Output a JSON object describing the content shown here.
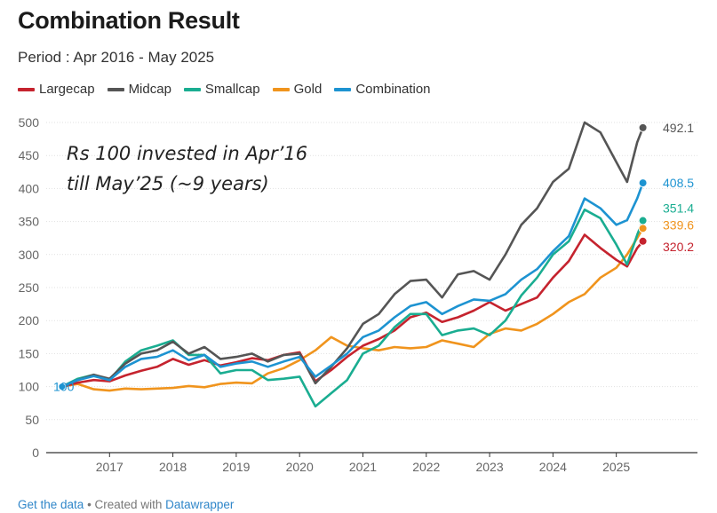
{
  "title": "Combination Result",
  "subtitle": "Period : Apr 2016 - May 2025",
  "annotation": [
    "Rs 100 invested in Apr’16",
    "till May’25 (~9 years)"
  ],
  "footer": {
    "get_data": "Get the data",
    "separator": " • Created with ",
    "tool": "Datawrapper"
  },
  "chart_data": {
    "type": "line",
    "xlabel": "",
    "ylabel": "",
    "ylim": [
      0,
      500
    ],
    "yticks": [
      0,
      50,
      100,
      150,
      200,
      250,
      300,
      350,
      400,
      450,
      500
    ],
    "xticks": [
      "2017",
      "2018",
      "2019",
      "2020",
      "2021",
      "2022",
      "2023",
      "2024",
      "2025"
    ],
    "x_start": "Apr 2016",
    "x_end": "May 2025",
    "grid": true,
    "legend_position": "top-left",
    "start_label": "100",
    "series": [
      {
        "name": "Largecap",
        "color": "#c5232e",
        "end_label": "320.2",
        "points": [
          [
            2016.25,
            100
          ],
          [
            2016.5,
            106
          ],
          [
            2016.75,
            110
          ],
          [
            2017.0,
            108
          ],
          [
            2017.25,
            117
          ],
          [
            2017.5,
            124
          ],
          [
            2017.75,
            130
          ],
          [
            2018.0,
            142
          ],
          [
            2018.25,
            133
          ],
          [
            2018.5,
            140
          ],
          [
            2018.75,
            132
          ],
          [
            2019.0,
            137
          ],
          [
            2019.25,
            143
          ],
          [
            2019.5,
            140
          ],
          [
            2019.75,
            148
          ],
          [
            2020.0,
            152
          ],
          [
            2020.25,
            108
          ],
          [
            2020.5,
            125
          ],
          [
            2020.75,
            145
          ],
          [
            2021.0,
            162
          ],
          [
            2021.25,
            172
          ],
          [
            2021.5,
            185
          ],
          [
            2021.75,
            205
          ],
          [
            2022.0,
            212
          ],
          [
            2022.25,
            198
          ],
          [
            2022.5,
            205
          ],
          [
            2022.75,
            215
          ],
          [
            2023.0,
            228
          ],
          [
            2023.25,
            215
          ],
          [
            2023.5,
            225
          ],
          [
            2023.75,
            235
          ],
          [
            2024.0,
            265
          ],
          [
            2024.25,
            290
          ],
          [
            2024.5,
            330
          ],
          [
            2024.75,
            310
          ],
          [
            2025.0,
            292
          ],
          [
            2025.17,
            282
          ],
          [
            2025.33,
            310
          ],
          [
            2025.42,
            320.2
          ]
        ]
      },
      {
        "name": "Midcap",
        "color": "#555555",
        "end_label": "492.1",
        "points": [
          [
            2016.25,
            100
          ],
          [
            2016.5,
            110
          ],
          [
            2016.75,
            118
          ],
          [
            2017.0,
            112
          ],
          [
            2017.25,
            135
          ],
          [
            2017.5,
            150
          ],
          [
            2017.75,
            155
          ],
          [
            2018.0,
            168
          ],
          [
            2018.25,
            150
          ],
          [
            2018.5,
            160
          ],
          [
            2018.75,
            142
          ],
          [
            2019.0,
            145
          ],
          [
            2019.25,
            150
          ],
          [
            2019.5,
            138
          ],
          [
            2019.75,
            148
          ],
          [
            2020.0,
            150
          ],
          [
            2020.25,
            105
          ],
          [
            2020.5,
            130
          ],
          [
            2020.75,
            158
          ],
          [
            2021.0,
            195
          ],
          [
            2021.25,
            210
          ],
          [
            2021.5,
            240
          ],
          [
            2021.75,
            260
          ],
          [
            2022.0,
            262
          ],
          [
            2022.25,
            235
          ],
          [
            2022.5,
            270
          ],
          [
            2022.75,
            275
          ],
          [
            2023.0,
            262
          ],
          [
            2023.25,
            300
          ],
          [
            2023.5,
            345
          ],
          [
            2023.75,
            370
          ],
          [
            2024.0,
            410
          ],
          [
            2024.25,
            430
          ],
          [
            2024.5,
            500
          ],
          [
            2024.75,
            485
          ],
          [
            2025.0,
            440
          ],
          [
            2025.17,
            410
          ],
          [
            2025.33,
            470
          ],
          [
            2025.42,
            492.1
          ]
        ]
      },
      {
        "name": "Smallcap",
        "color": "#1aad91",
        "end_label": "351.4",
        "points": [
          [
            2016.25,
            100
          ],
          [
            2016.5,
            112
          ],
          [
            2016.75,
            118
          ],
          [
            2017.0,
            110
          ],
          [
            2017.25,
            138
          ],
          [
            2017.5,
            155
          ],
          [
            2017.75,
            162
          ],
          [
            2018.0,
            170
          ],
          [
            2018.25,
            148
          ],
          [
            2018.5,
            148
          ],
          [
            2018.75,
            120
          ],
          [
            2019.0,
            125
          ],
          [
            2019.25,
            125
          ],
          [
            2019.5,
            110
          ],
          [
            2019.75,
            112
          ],
          [
            2020.0,
            115
          ],
          [
            2020.25,
            70
          ],
          [
            2020.5,
            90
          ],
          [
            2020.75,
            110
          ],
          [
            2021.0,
            150
          ],
          [
            2021.25,
            162
          ],
          [
            2021.5,
            190
          ],
          [
            2021.75,
            210
          ],
          [
            2022.0,
            210
          ],
          [
            2022.25,
            178
          ],
          [
            2022.5,
            185
          ],
          [
            2022.75,
            188
          ],
          [
            2023.0,
            178
          ],
          [
            2023.25,
            200
          ],
          [
            2023.5,
            238
          ],
          [
            2023.75,
            265
          ],
          [
            2024.0,
            300
          ],
          [
            2024.25,
            320
          ],
          [
            2024.5,
            368
          ],
          [
            2024.75,
            355
          ],
          [
            2025.0,
            315
          ],
          [
            2025.17,
            285
          ],
          [
            2025.33,
            330
          ],
          [
            2025.42,
            351.4
          ]
        ]
      },
      {
        "name": "Gold",
        "color": "#f0941d",
        "end_label": "339.6",
        "points": [
          [
            2016.25,
            100
          ],
          [
            2016.5,
            104
          ],
          [
            2016.75,
            96
          ],
          [
            2017.0,
            94
          ],
          [
            2017.25,
            97
          ],
          [
            2017.5,
            96
          ],
          [
            2017.75,
            97
          ],
          [
            2018.0,
            98
          ],
          [
            2018.25,
            101
          ],
          [
            2018.5,
            99
          ],
          [
            2018.75,
            104
          ],
          [
            2019.0,
            106
          ],
          [
            2019.25,
            105
          ],
          [
            2019.5,
            120
          ],
          [
            2019.75,
            128
          ],
          [
            2020.0,
            140
          ],
          [
            2020.25,
            155
          ],
          [
            2020.5,
            175
          ],
          [
            2020.75,
            162
          ],
          [
            2021.0,
            158
          ],
          [
            2021.25,
            155
          ],
          [
            2021.5,
            160
          ],
          [
            2021.75,
            158
          ],
          [
            2022.0,
            160
          ],
          [
            2022.25,
            170
          ],
          [
            2022.5,
            165
          ],
          [
            2022.75,
            160
          ],
          [
            2023.0,
            180
          ],
          [
            2023.25,
            188
          ],
          [
            2023.5,
            185
          ],
          [
            2023.75,
            195
          ],
          [
            2024.0,
            210
          ],
          [
            2024.25,
            228
          ],
          [
            2024.5,
            240
          ],
          [
            2024.75,
            265
          ],
          [
            2025.0,
            280
          ],
          [
            2025.17,
            300
          ],
          [
            2025.33,
            325
          ],
          [
            2025.42,
            339.6
          ]
        ]
      },
      {
        "name": "Combination",
        "color": "#1d93d1",
        "end_label": "408.5",
        "points": [
          [
            2016.25,
            100
          ],
          [
            2016.5,
            110
          ],
          [
            2016.75,
            116
          ],
          [
            2017.0,
            110
          ],
          [
            2017.25,
            130
          ],
          [
            2017.5,
            142
          ],
          [
            2017.75,
            145
          ],
          [
            2018.0,
            155
          ],
          [
            2018.25,
            140
          ],
          [
            2018.5,
            148
          ],
          [
            2018.75,
            130
          ],
          [
            2019.0,
            135
          ],
          [
            2019.25,
            138
          ],
          [
            2019.5,
            130
          ],
          [
            2019.75,
            138
          ],
          [
            2020.0,
            145
          ],
          [
            2020.25,
            115
          ],
          [
            2020.5,
            132
          ],
          [
            2020.75,
            150
          ],
          [
            2021.0,
            175
          ],
          [
            2021.25,
            185
          ],
          [
            2021.5,
            205
          ],
          [
            2021.75,
            222
          ],
          [
            2022.0,
            228
          ],
          [
            2022.25,
            210
          ],
          [
            2022.5,
            222
          ],
          [
            2022.75,
            232
          ],
          [
            2023.0,
            230
          ],
          [
            2023.25,
            240
          ],
          [
            2023.5,
            262
          ],
          [
            2023.75,
            278
          ],
          [
            2024.0,
            305
          ],
          [
            2024.25,
            328
          ],
          [
            2024.5,
            385
          ],
          [
            2024.75,
            370
          ],
          [
            2025.0,
            345
          ],
          [
            2025.17,
            352
          ],
          [
            2025.33,
            385
          ],
          [
            2025.42,
            408.5
          ]
        ]
      }
    ]
  }
}
